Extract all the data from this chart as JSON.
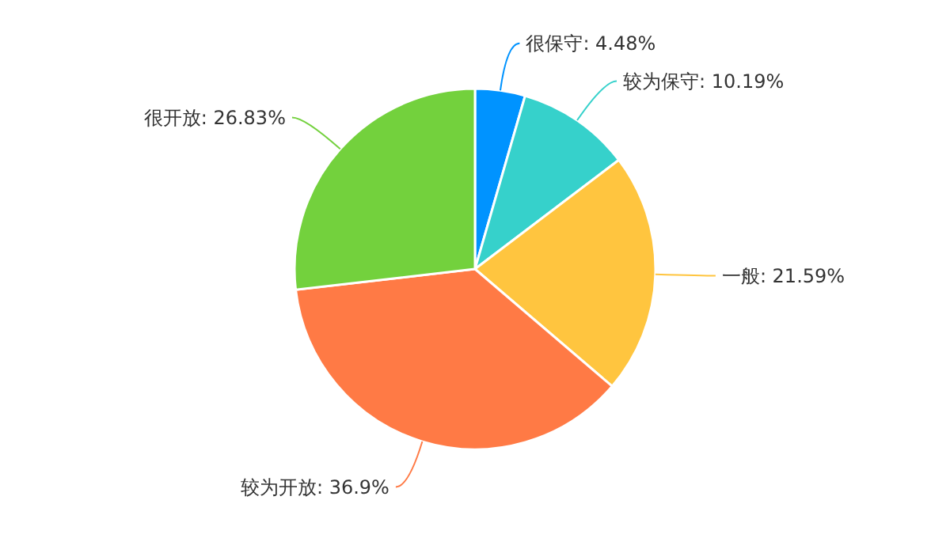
{
  "chart_data": {
    "type": "pie",
    "categories": [
      "很保守",
      "较为保守",
      "一般",
      "较为开放",
      "很开放"
    ],
    "values": [
      4.48,
      10.19,
      21.59,
      36.9,
      26.83
    ],
    "colors": [
      "#0093ff",
      "#36d1cb",
      "#ffc53f",
      "#ff7a45",
      "#73d13d"
    ],
    "value_labels": [
      "4.48%",
      "10.19%",
      "21.59%",
      "36.9%",
      "26.83%"
    ]
  }
}
